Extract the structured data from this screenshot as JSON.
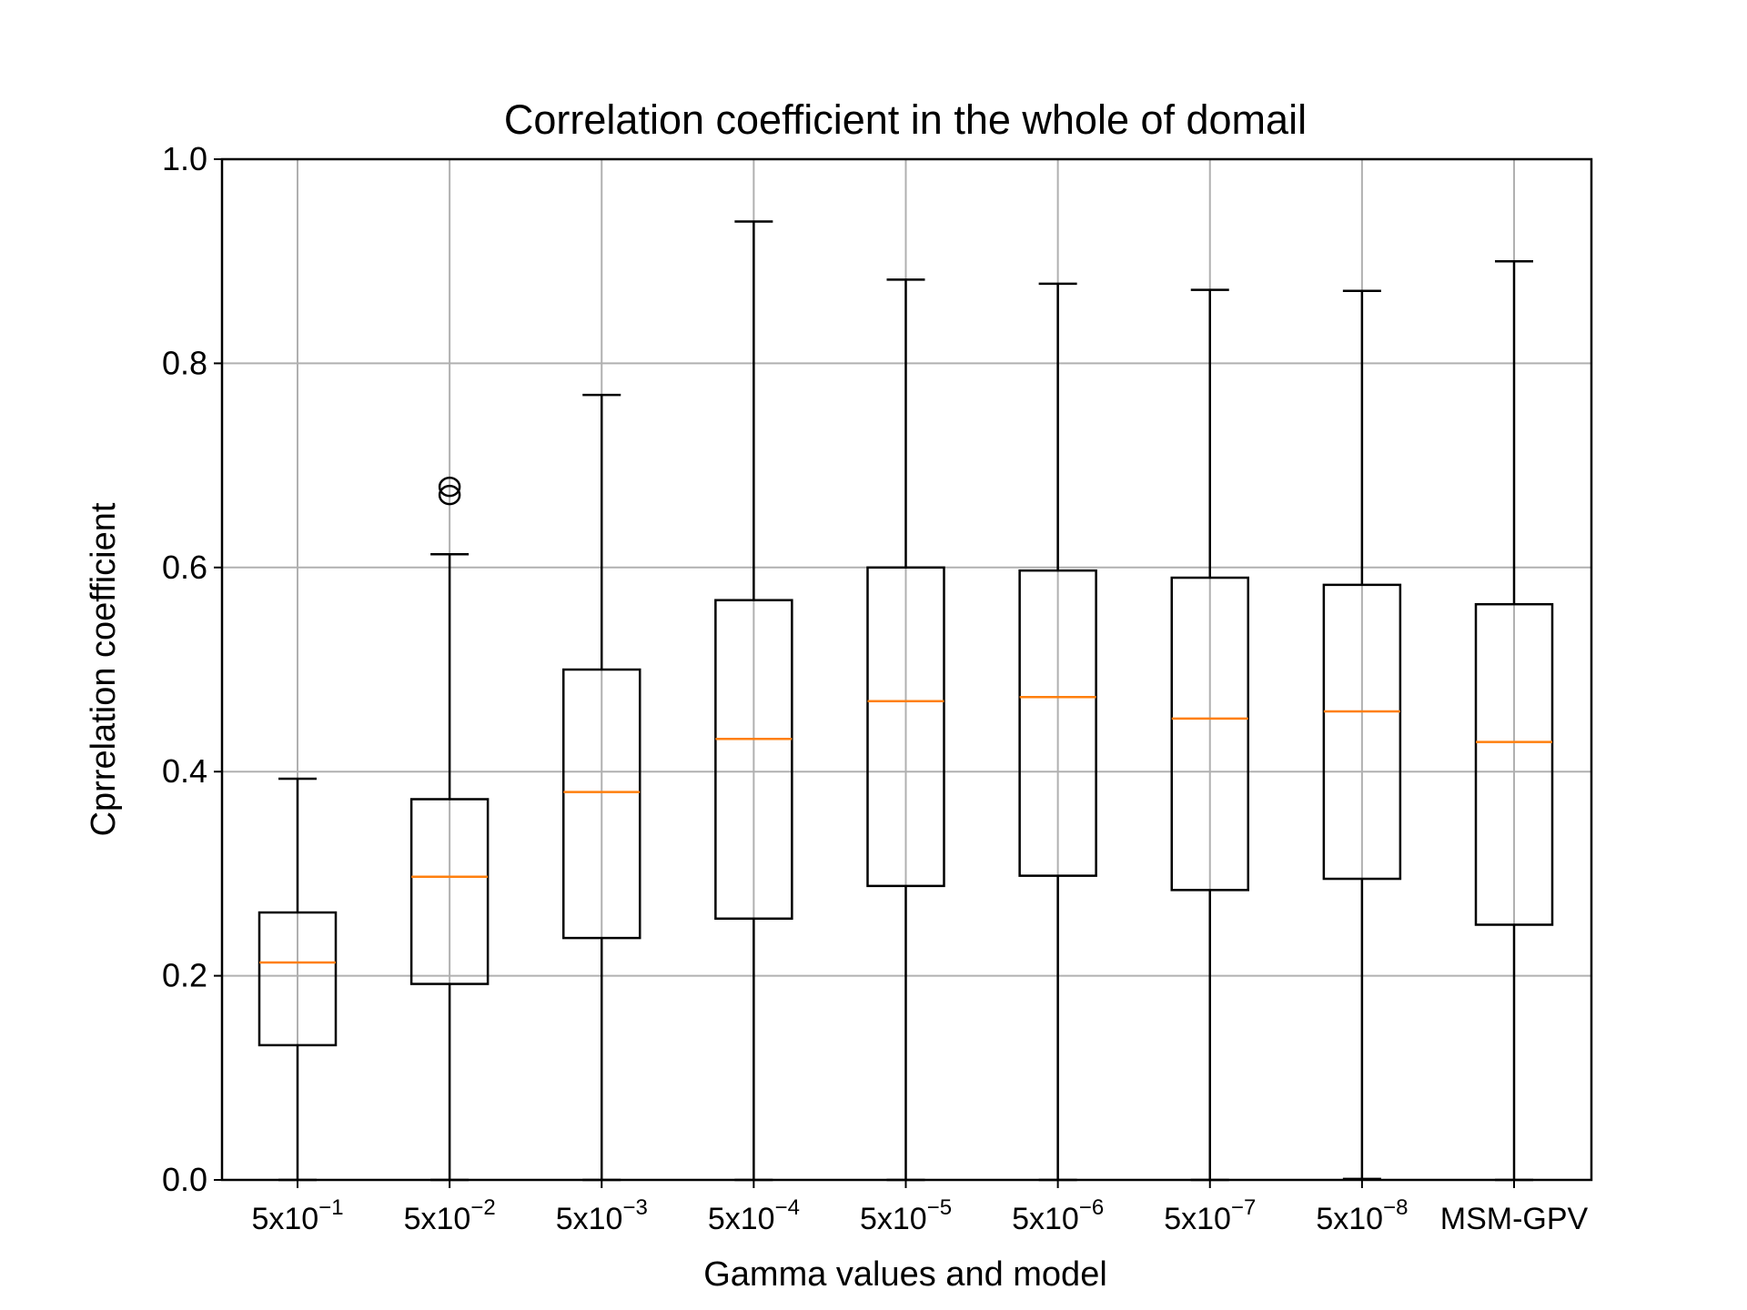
{
  "chart_data": {
    "type": "boxplot",
    "title": "Correlation coefficient in the whole of domail",
    "xlabel": "Gamma values and model",
    "ylabel": "Cprrelation coefficient",
    "ylim": [
      0.0,
      1.0
    ],
    "yticks": [
      "0.0",
      "0.2",
      "0.4",
      "0.6",
      "0.8",
      "1.0"
    ],
    "grid": true,
    "categories": [
      {
        "base": "5x10",
        "exp": "−1"
      },
      {
        "base": "5x10",
        "exp": "−2"
      },
      {
        "base": "5x10",
        "exp": "−3"
      },
      {
        "base": "5x10",
        "exp": "−4"
      },
      {
        "base": "5x10",
        "exp": "−5"
      },
      {
        "base": "5x10",
        "exp": "−6"
      },
      {
        "base": "5x10",
        "exp": "−7"
      },
      {
        "base": "5x10",
        "exp": "−8"
      },
      {
        "base": "MSM-GPV",
        "exp": ""
      }
    ],
    "boxes": [
      {
        "whisker_low": 0.0,
        "q1": 0.132,
        "median": 0.213,
        "q3": 0.262,
        "whisker_high": 0.393,
        "outliers": []
      },
      {
        "whisker_low": 0.0,
        "q1": 0.192,
        "median": 0.297,
        "q3": 0.373,
        "whisker_high": 0.613,
        "outliers": [
          0.671,
          0.679
        ]
      },
      {
        "whisker_low": 0.0,
        "q1": 0.237,
        "median": 0.38,
        "q3": 0.5,
        "whisker_high": 0.769,
        "outliers": []
      },
      {
        "whisker_low": 0.0,
        "q1": 0.256,
        "median": 0.432,
        "q3": 0.568,
        "whisker_high": 0.939,
        "outliers": []
      },
      {
        "whisker_low": 0.0,
        "q1": 0.288,
        "median": 0.469,
        "q3": 0.6,
        "whisker_high": 0.882,
        "outliers": []
      },
      {
        "whisker_low": 0.0,
        "q1": 0.298,
        "median": 0.473,
        "q3": 0.597,
        "whisker_high": 0.878,
        "outliers": []
      },
      {
        "whisker_low": 0.0,
        "q1": 0.284,
        "median": 0.452,
        "q3": 0.59,
        "whisker_high": 0.872,
        "outliers": []
      },
      {
        "whisker_low": 0.001,
        "q1": 0.295,
        "median": 0.459,
        "q3": 0.583,
        "whisker_high": 0.871,
        "outliers": []
      },
      {
        "whisker_low": 0.0,
        "q1": 0.25,
        "median": 0.429,
        "q3": 0.564,
        "whisker_high": 0.9,
        "outliers": []
      }
    ],
    "colors": {
      "box": "#000000",
      "median": "#ff7f0e",
      "grid": "#b0b0b0"
    }
  }
}
